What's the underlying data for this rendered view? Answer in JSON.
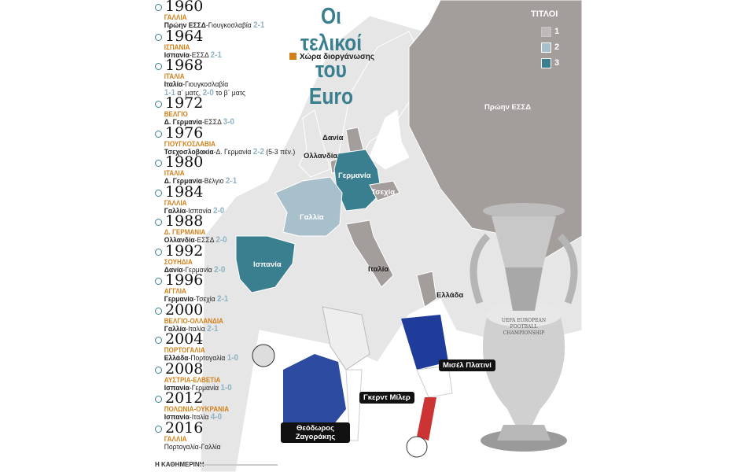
{
  "title_line1": "Οι τελικοί",
  "title_line2": "του Euro",
  "host_legend": "Χώρα διοργάνωσης",
  "legend": {
    "title": "ΤΙΤΛΟΙ",
    "items": [
      {
        "label": "1",
        "color": "#e6e6e6"
      },
      {
        "label": "2",
        "color": "#a8c0cb"
      },
      {
        "label": "3",
        "color": "#3a7f8f"
      }
    ]
  },
  "colors": {
    "accent": "#3a7f8f",
    "host": "#d2801a",
    "one_title": "#a39e9b",
    "map_base": "#e6e6e6"
  },
  "finals": [
    {
      "year": "1960",
      "host": "ΓΑΛΛΙΑ",
      "winner": "Πρώην ΕΣΣΔ",
      "runner": "-Γιουγκοσλαβία ",
      "score": "2-1",
      "extra": ""
    },
    {
      "year": "1964",
      "host": "ΙΣΠΑΝΙΑ",
      "winner": "Ισπανία",
      "runner": "-ΕΣΣΔ ",
      "score": "2-1",
      "extra": ""
    },
    {
      "year": "1968",
      "host": "ΙΤΑΛΙΑ",
      "winner": "Ιταλία",
      "runner": "-Γιουγκοσλαβία",
      "score": "",
      "extra": ""
    },
    {
      "year": "1972",
      "host": "ΒΕΛΓΙΟ",
      "winner": "Δ. Γερμανία",
      "runner": "-ΕΣΣΔ ",
      "score": "3-0",
      "extra": ""
    },
    {
      "year": "1976",
      "host": "ΓΙΟΥΓΚΟΣΛΑΒΙΑ",
      "winner": "Τσεχοσλοβακία",
      "runner": "-Δ. Γερμανία ",
      "score": "2-2",
      "extra": " (5-3 πέν.)"
    },
    {
      "year": "1980",
      "host": "ΙΤΑΛΙΑ",
      "winner": "Δ. Γερμανία",
      "runner": "-Βέλγιο ",
      "score": "2-1",
      "extra": ""
    },
    {
      "year": "1984",
      "host": "ΓΑΛΛΙΑ",
      "winner": "Γαλλία",
      "runner": "-Ισπανία ",
      "score": "2-0",
      "extra": ""
    },
    {
      "year": "1988",
      "host": "Δ. ΓΕΡΜΑΝΙΑ",
      "winner": "Ολλανδία",
      "runner": "-ΕΣΣΔ ",
      "score": "2-0",
      "extra": ""
    },
    {
      "year": "1992",
      "host": "ΣΟΥΗΔΙΑ",
      "winner": "Δανία",
      "runner": "-Γερμανία ",
      "score": "2-0",
      "extra": ""
    },
    {
      "year": "1996",
      "host": "ΑΓΓΛΙΑ",
      "winner": "Γερμανία",
      "runner": "-Τσεχία ",
      "score": "2-1",
      "extra": ""
    },
    {
      "year": "2000",
      "host": "ΒΕΛΓΙΟ-ΟΛΛΑΝΔΙΑ",
      "winner": "Γαλλία",
      "runner": "-Ιταλία ",
      "score": "2-1",
      "extra": ""
    },
    {
      "year": "2004",
      "host": "ΠΟΡΤΟΓΑΛΙΑ",
      "winner": "Ελλάδα",
      "runner": "-Πορτογαλία ",
      "score": "1-0",
      "extra": ""
    },
    {
      "year": "2008",
      "host": "ΑΥΣΤΡΙΑ-ΕΛΒΕΤΙΑ",
      "winner": "Ισπανία",
      "runner": "-Γερμανία ",
      "score": "1-0",
      "extra": ""
    },
    {
      "year": "2012",
      "host": "ΠΟΛΩΝΙΑ-ΟΥΚΡΑΝΙΑ",
      "winner": "Ισπανία",
      "runner": "-Ιταλία ",
      "score": "4-0",
      "extra": ""
    },
    {
      "year": "2016",
      "host": "ΓΑΛΛΙΑ",
      "winner": "",
      "runner": "Πορτογαλία-Γαλλία",
      "score": "",
      "extra": ""
    }
  ],
  "final_1968_replay": {
    "s1": "1-1",
    "t1": " α΄ ματς, ",
    "s2": "2-0",
    "t2": " το β΄ ματς"
  },
  "map_labels": {
    "ussr": "Πρώην ΕΣΣΔ",
    "denmark": "Δανία",
    "netherlands": "Ολλανδία",
    "germany": "Γερμανία",
    "czech": "Τσεχία",
    "france": "Γαλλία",
    "spain": "Ισπανία",
    "italy": "Ιταλία",
    "greece": "Ελλάδα"
  },
  "players": {
    "platini": "Μισέλ Πλατινί",
    "muller": "Γκερντ Μίλερ",
    "zagorakis": "Θεόδωρος Ζαγοράκης"
  },
  "trophy_text": "UEFA EUROPEAN FOOTBALL CHAMPIONSHIP",
  "credit": "Η ΚΑΘΗΜΕΡΙΝΗ"
}
